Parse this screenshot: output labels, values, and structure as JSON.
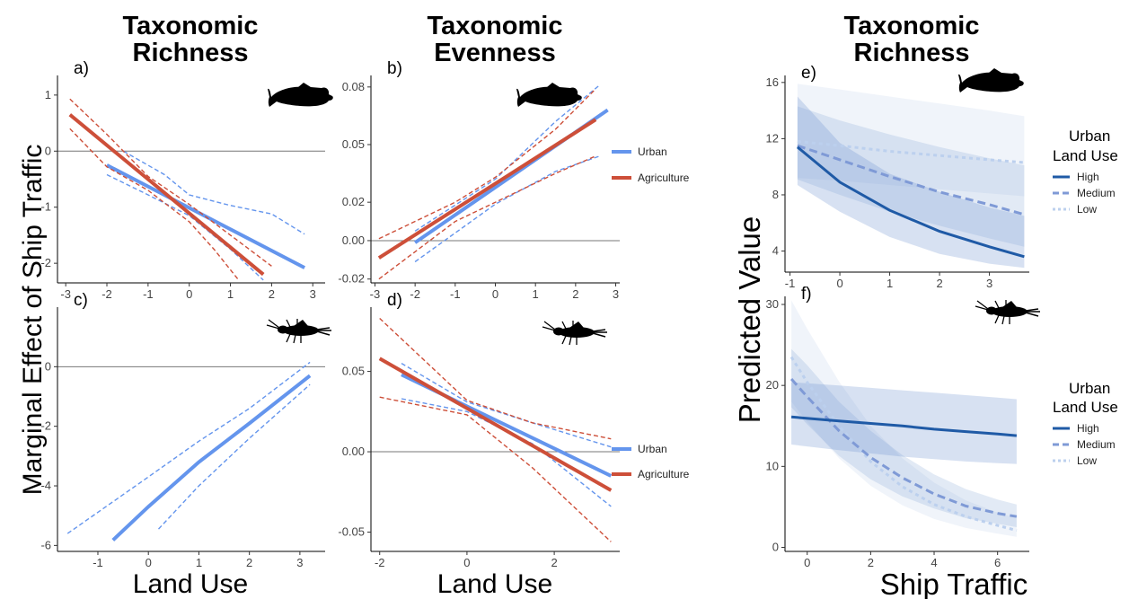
{
  "column_titles": [
    {
      "line1": "Taxonomic",
      "line2": "Richness"
    },
    {
      "line1": "Taxonomic",
      "line2": "Evenness"
    },
    {
      "line1": "Taxonomic",
      "line2": "Richness"
    }
  ],
  "left_axes": {
    "ylabel": "Marginal Effect of Ship Traffic",
    "xlabel": "Land Use"
  },
  "right_axes": {
    "ylabel": "Predicted Value",
    "xlabel": "Ship Traffic"
  },
  "colors": {
    "urban": "#6495ed",
    "agriculture": "#cd4f39",
    "high": "#1f5aa6",
    "medium": "#7f9ad6",
    "low": "#bcd0ee",
    "band": "#6f95cf"
  },
  "icons": [
    "fish-silhouette-icon",
    "insect-larva-icon"
  ],
  "legends": {
    "land_use": {
      "urban": "Urban",
      "agriculture": "Agriculture"
    },
    "urban_land_use": {
      "title1": "Urban",
      "title2": "Land Use",
      "items": [
        "High",
        "Medium",
        "Low"
      ]
    }
  },
  "chart_data": [
    {
      "panel": "a)",
      "type": "line",
      "icon": "fish-silhouette-icon",
      "xlim": [
        -3.2,
        3.3
      ],
      "ylim": [
        -2.35,
        1.35
      ],
      "xticks": [
        -3,
        -2,
        -1,
        0,
        1,
        2,
        3
      ],
      "yticks": [
        1,
        0,
        -1,
        -2
      ],
      "hline": 0,
      "series": [
        {
          "name": "Urban",
          "x": [
            -2,
            2.8
          ],
          "y": [
            -0.25,
            -2.08
          ],
          "ci_lower": [
            [
              -2,
              -0.42
            ],
            [
              -1,
              -0.78
            ],
            [
              0,
              -1.15
            ],
            [
              1,
              -1.75
            ],
            [
              1.8,
              -2.3
            ]
          ],
          "ci_upper": [
            [
              -1.6,
              0.0
            ],
            [
              -0.6,
              -0.42
            ],
            [
              0,
              -0.78
            ],
            [
              1,
              -0.97
            ],
            [
              2,
              -1.12
            ],
            [
              2.8,
              -1.48
            ]
          ]
        },
        {
          "name": "Agriculture",
          "x": [
            -2.9,
            1.8
          ],
          "y": [
            0.65,
            -2.2
          ],
          "ci_lower": [
            [
              -2.9,
              0.4
            ],
            [
              -2,
              -0.28
            ],
            [
              -1,
              -0.7
            ],
            [
              0,
              -1.26
            ],
            [
              0.6,
              -1.75
            ],
            [
              1.2,
              -2.3
            ]
          ],
          "ci_upper": [
            [
              -2.9,
              0.93
            ],
            [
              -2,
              0.3
            ],
            [
              -1,
              -0.45
            ],
            [
              0,
              -0.95
            ],
            [
              1,
              -1.5
            ],
            [
              2,
              -2.05
            ]
          ]
        }
      ]
    },
    {
      "panel": "b)",
      "type": "line",
      "icon": "fish-silhouette-icon",
      "xlim": [
        -3.1,
        3.1
      ],
      "ylim": [
        -0.022,
        0.086
      ],
      "xticks": [
        -3,
        -2,
        -1,
        0,
        1,
        2,
        3
      ],
      "yticks": [
        0.08,
        0.05,
        0.02,
        0.0,
        -0.02
      ],
      "ytick_labels": [
        "0.08",
        "0.05",
        "0.02",
        "0.00",
        "-0.02"
      ],
      "hline": 0,
      "series": [
        {
          "name": "Urban",
          "x": [
            -2,
            2.8
          ],
          "y": [
            -0.001,
            0.068
          ],
          "ci_lower": [
            [
              -2,
              -0.011
            ],
            [
              0,
              0.019
            ],
            [
              1.5,
              0.036
            ],
            [
              2.6,
              0.044
            ]
          ],
          "ci_upper": [
            [
              -2,
              0.005
            ],
            [
              0,
              0.032
            ],
            [
              1.5,
              0.062
            ],
            [
              2.6,
              0.081
            ]
          ]
        },
        {
          "name": "Agriculture",
          "x": [
            -2.9,
            2.5
          ],
          "y": [
            -0.009,
            0.063
          ],
          "ci_lower": [
            [
              -2.9,
              -0.02
            ],
            [
              -1,
              0.01
            ],
            [
              0,
              0.02
            ],
            [
              1.5,
              0.035
            ],
            [
              2.5,
              0.044
            ]
          ],
          "ci_upper": [
            [
              -2.9,
              0.001
            ],
            [
              -1,
              0.02
            ],
            [
              0,
              0.033
            ],
            [
              1.5,
              0.058
            ],
            [
              2.5,
              0.079
            ]
          ]
        }
      ]
    },
    {
      "panel": "c)",
      "type": "line",
      "icon": "insect-larva-icon",
      "xlim": [
        -1.8,
        3.5
      ],
      "ylim": [
        -6.2,
        2.0
      ],
      "xticks": [
        -1,
        0,
        1,
        2,
        3
      ],
      "yticks": [
        0,
        -2,
        -4,
        -6
      ],
      "hline": 0,
      "series": [
        {
          "name": "Urban",
          "x": [
            -0.7,
            0,
            1,
            2,
            3.2
          ],
          "y": [
            -5.82,
            -4.7,
            -3.2,
            -1.9,
            -0.3
          ],
          "ci_lower": [
            [
              0.2,
              -5.45
            ],
            [
              1,
              -4.0
            ],
            [
              2,
              -2.4
            ],
            [
              3.2,
              -0.6
            ]
          ],
          "ci_upper": [
            [
              -1.6,
              -5.6
            ],
            [
              0,
              -3.7
            ],
            [
              1,
              -2.5
            ],
            [
              2,
              -1.4
            ],
            [
              3.2,
              0.15
            ]
          ]
        }
      ]
    },
    {
      "panel": "d)",
      "type": "line",
      "icon": "insect-larva-icon",
      "xlim": [
        -2.2,
        3.5
      ],
      "ylim": [
        -0.062,
        0.09
      ],
      "xticks": [
        -2,
        0,
        2
      ],
      "yticks": [
        0.05,
        0.0,
        -0.05
      ],
      "ytick_labels": [
        "0.05",
        "0.00",
        "-0.05"
      ],
      "hline": 0,
      "series": [
        {
          "name": "Urban",
          "x": [
            -1.5,
            3.3
          ],
          "y": [
            0.048,
            -0.015
          ],
          "ci_lower": [
            [
              -1.5,
              0.033
            ],
            [
              0,
              0.025
            ],
            [
              1.5,
              0.005
            ],
            [
              3.3,
              -0.034
            ]
          ],
          "ci_upper": [
            [
              -1.5,
              0.055
            ],
            [
              0,
              0.031
            ],
            [
              1.5,
              0.018
            ],
            [
              3.3,
              0.003
            ]
          ]
        },
        {
          "name": "Agriculture",
          "x": [
            -2,
            3.3
          ],
          "y": [
            0.058,
            -0.024
          ],
          "ci_lower": [
            [
              -2,
              0.034
            ],
            [
              0,
              0.023
            ],
            [
              1.5,
              -0.01
            ],
            [
              3.3,
              -0.056
            ]
          ],
          "ci_upper": [
            [
              -2,
              0.083
            ],
            [
              0,
              0.032
            ],
            [
              1.5,
              0.018
            ],
            [
              3.3,
              0.008
            ]
          ]
        }
      ]
    },
    {
      "panel": "e)",
      "type": "line",
      "icon": "fish-silhouette-icon",
      "xlim": [
        -1.1,
        3.8
      ],
      "ylim": [
        2.5,
        16.5
      ],
      "xticks": [
        -1,
        0,
        1,
        2,
        3
      ],
      "yticks": [
        16,
        12,
        8,
        4
      ],
      "series": [
        {
          "name": "High",
          "x": [
            -0.85,
            0,
            1,
            2,
            3,
            3.7
          ],
          "y": [
            11.4,
            8.9,
            6.9,
            5.4,
            4.3,
            3.6
          ],
          "band_upper": [
            15.0,
            11.7,
            9.5,
            8.2,
            7.1,
            6.5
          ],
          "band_lower": [
            8.7,
            6.8,
            5.0,
            3.8,
            3.1,
            2.8
          ]
        },
        {
          "name": "Medium",
          "x": [
            -0.85,
            0,
            1,
            2,
            3,
            3.7
          ],
          "y": [
            11.5,
            10.5,
            9.3,
            8.2,
            7.3,
            6.6
          ],
          "band_upper": [
            14.3,
            13.3,
            12.3,
            11.4,
            10.6,
            10.1
          ],
          "band_lower": [
            9.1,
            8.0,
            6.8,
            5.8,
            4.9,
            4.3
          ]
        },
        {
          "name": "Low",
          "x": [
            -0.85,
            0,
            1,
            2,
            3,
            3.7
          ],
          "y": [
            11.8,
            11.5,
            11.1,
            10.8,
            10.5,
            10.3
          ],
          "band_upper": [
            15.9,
            15.5,
            15.0,
            14.5,
            14.0,
            13.6
          ],
          "band_lower": [
            9.2,
            9.0,
            8.7,
            8.4,
            8.1,
            7.9
          ]
        }
      ]
    },
    {
      "panel": "f)",
      "type": "line",
      "icon": "insect-larva-icon",
      "xlim": [
        -0.7,
        7.0
      ],
      "ylim": [
        -0.5,
        31
      ],
      "xticks": [
        0,
        2,
        4,
        6
      ],
      "yticks": [
        30,
        20,
        10,
        0
      ],
      "series": [
        {
          "name": "High",
          "x": [
            -0.5,
            1,
            2,
            3,
            4,
            5,
            6,
            6.6
          ],
          "y": [
            16.1,
            15.6,
            15.3,
            15.0,
            14.6,
            14.3,
            14.0,
            13.8
          ],
          "band_upper": [
            20.4,
            20.0,
            19.7,
            19.4,
            19.1,
            18.8,
            18.5,
            18.3
          ],
          "band_lower": [
            12.7,
            12.0,
            11.6,
            11.2,
            10.9,
            10.6,
            10.4,
            10.3
          ]
        },
        {
          "name": "Medium",
          "x": [
            -0.5,
            0,
            1,
            2,
            3,
            4,
            5,
            6,
            6.6
          ],
          "y": [
            20.8,
            18.6,
            14.4,
            11.1,
            8.6,
            6.6,
            5.1,
            4.2,
            3.8
          ],
          "band_upper": [
            24.5,
            22.5,
            18.0,
            14.4,
            11.4,
            9.0,
            7.2,
            5.9,
            5.3
          ],
          "band_lower": [
            17.3,
            15.2,
            11.3,
            8.4,
            6.3,
            4.8,
            3.6,
            2.9,
            2.5
          ]
        },
        {
          "name": "Low",
          "x": [
            -0.5,
            0,
            1,
            2,
            3,
            4,
            5,
            6,
            6.6
          ],
          "y": [
            23.5,
            20.4,
            15.0,
            10.6,
            7.5,
            5.3,
            3.8,
            2.7,
            2.1
          ],
          "band_upper": [
            30.5,
            27.0,
            20.5,
            15.0,
            11.0,
            8.0,
            5.8,
            4.3,
            3.6
          ],
          "band_lower": [
            18.0,
            15.5,
            11.0,
            7.6,
            5.2,
            3.5,
            2.4,
            1.7,
            1.3
          ]
        }
      ]
    }
  ]
}
